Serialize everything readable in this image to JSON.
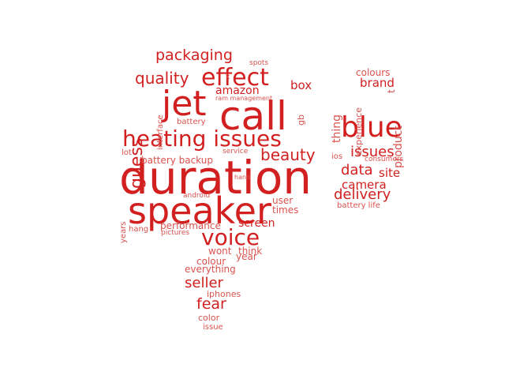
{
  "cloud": {
    "color": "#d21f1f",
    "color_light": "#d9534f",
    "words": [
      {
        "text": "duration"
      },
      {
        "text": "speaker"
      },
      {
        "text": "call"
      },
      {
        "text": "jet"
      },
      {
        "text": "heating issues"
      },
      {
        "text": "blue"
      },
      {
        "text": "effect"
      },
      {
        "text": "voice"
      },
      {
        "text": "quality"
      },
      {
        "text": "packaging"
      },
      {
        "text": "guess"
      },
      {
        "text": "beauty"
      },
      {
        "text": "issues"
      },
      {
        "text": "delivery"
      },
      {
        "text": "data"
      },
      {
        "text": "camera"
      },
      {
        "text": "site"
      },
      {
        "text": "seller"
      },
      {
        "text": "fear"
      },
      {
        "text": "amazon"
      },
      {
        "text": "box"
      },
      {
        "text": "brand"
      },
      {
        "text": "thing"
      },
      {
        "text": "product"
      },
      {
        "text": "experience"
      },
      {
        "text": "colours"
      },
      {
        "text": "screen"
      },
      {
        "text": "times"
      },
      {
        "text": "user"
      },
      {
        "text": "performance"
      },
      {
        "text": "battery backup"
      },
      {
        "text": "think"
      },
      {
        "text": "wont"
      },
      {
        "text": "year"
      },
      {
        "text": "colour"
      },
      {
        "text": "everything"
      },
      {
        "text": "iphones"
      },
      {
        "text": "color"
      },
      {
        "text": "issue"
      },
      {
        "text": "interface"
      },
      {
        "text": "battery"
      },
      {
        "text": "ram management"
      },
      {
        "text": "k"
      },
      {
        "text": "gb"
      },
      {
        "text": "spots"
      },
      {
        "text": "lot"
      },
      {
        "text": "service"
      },
      {
        "text": "hand"
      },
      {
        "text": "android"
      },
      {
        "text": "years"
      },
      {
        "text": "hang"
      },
      {
        "text": "pictures"
      },
      {
        "text": "ios"
      },
      {
        "text": "consumers"
      },
      {
        "text": "battery life"
      },
      {
        "text": "t"
      }
    ]
  }
}
